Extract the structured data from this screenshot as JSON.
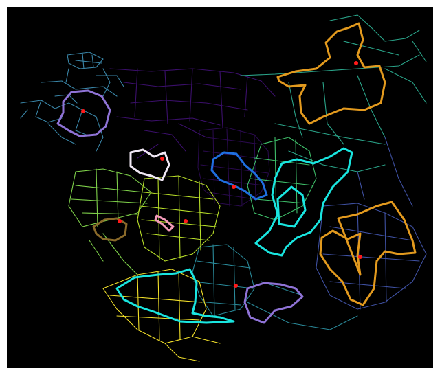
{
  "map": {
    "background": "#000000",
    "page_background": "#ffffff",
    "marker_color": "#ff1a1a",
    "network_colors": {
      "northwest": "#3a86a8",
      "north": "#3b0f6b",
      "center": "#2a0a4f",
      "northeast": "#2aa58a",
      "east": "#3f51a3",
      "west_green": "#7fd14a",
      "west_lime": "#b8de29",
      "south_teal": "#2a8a9a",
      "south_yellow": "#f4e22a",
      "mid_green": "#3fbf6a"
    },
    "route_colors": {
      "orange": "#e39a1e",
      "lavender": "#8f73d6",
      "white": "#f0e8f5",
      "blue": "#1f6fe0",
      "cyan": "#19e6e0",
      "pink": "#f39bb9",
      "brown": "#8a6a2a"
    },
    "routes": [
      {
        "name": "route-northeast",
        "color_key": "orange"
      },
      {
        "name": "route-east",
        "color_key": "orange"
      },
      {
        "name": "route-northwest",
        "color_key": "lavender"
      },
      {
        "name": "route-south-center",
        "color_key": "lavender"
      },
      {
        "name": "route-west-center",
        "color_key": "white"
      },
      {
        "name": "route-center",
        "color_key": "blue"
      },
      {
        "name": "route-center-east",
        "color_key": "cyan"
      },
      {
        "name": "route-southwest",
        "color_key": "cyan"
      },
      {
        "name": "route-pink",
        "color_key": "pink"
      },
      {
        "name": "route-west",
        "color_key": "brown"
      }
    ]
  }
}
